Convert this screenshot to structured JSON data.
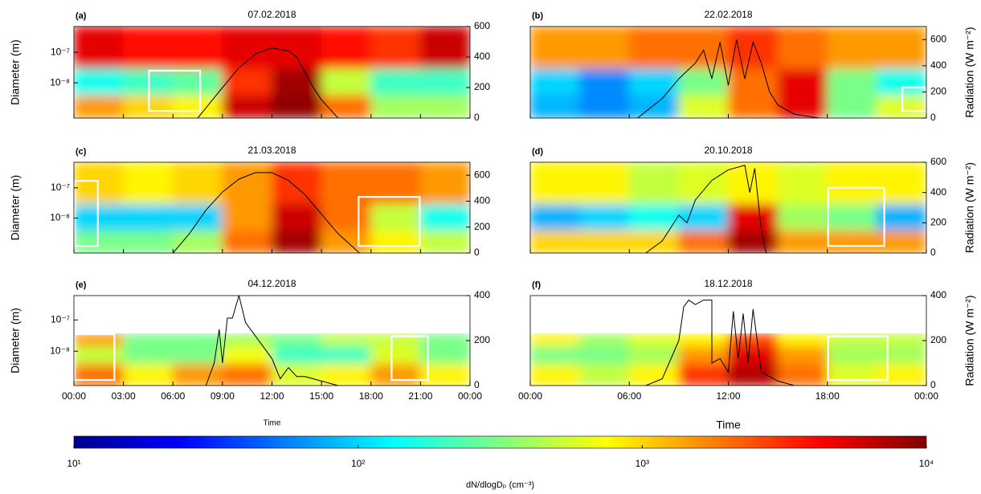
{
  "chart_data": [
    {
      "type": "heatmap",
      "label": "(a)",
      "title": "07.02.2018",
      "ylabel": "Diameter (m)",
      "xlim": [
        0,
        24
      ],
      "ylim": [
        7e-10,
        7e-07
      ],
      "yticks": [
        {
          "value": 1e-08,
          "label": "10⁻⁸"
        },
        {
          "value": 1e-07,
          "label": "10⁻⁷"
        }
      ],
      "y2lim": [
        0,
        600
      ],
      "y2ticks": [
        0,
        200,
        400,
        600
      ],
      "heat_edges": [
        7e-10,
        4e-09,
        3e-08,
        7e-07
      ],
      "heat": [
        [
          1500,
          1000,
          800,
          6000,
          9000,
          2000,
          400,
          400
        ],
        [
          150,
          200,
          250,
          3000,
          8000,
          500,
          200,
          200
        ],
        [
          5000,
          4000,
          4000,
          5000,
          5000,
          4000,
          3000,
          6000
        ]
      ],
      "radiation": {
        "x": [
          7.5,
          9,
          10,
          11,
          12,
          13,
          13.5,
          14,
          14.5,
          15,
          16
        ],
        "values": [
          0,
          200,
          330,
          420,
          460,
          440,
          400,
          300,
          200,
          120,
          0
        ]
      },
      "boxes": [
        {
          "x": [
            4.5,
            7.7
          ],
          "y": [
            1.2e-09,
            2.5e-08
          ]
        }
      ]
    },
    {
      "type": "heatmap",
      "label": "(b)",
      "title": "22.02.2018",
      "y2label": "Radiation (W m⁻²)",
      "xlim": [
        0,
        24
      ],
      "ylim": [
        7e-10,
        7e-07
      ],
      "y2lim": [
        0,
        700
      ],
      "y2ticks": [
        0,
        200,
        400,
        600
      ],
      "heat_edges": [
        7e-10,
        4e-09,
        3e-08,
        7e-07
      ],
      "heat": [
        [
          80,
          60,
          80,
          600,
          2000,
          5000,
          300,
          600
        ],
        [
          100,
          60,
          100,
          300,
          2000,
          5000,
          300,
          150
        ],
        [
          1500,
          1500,
          2000,
          2000,
          3000,
          2000,
          1500,
          1500
        ]
      ],
      "radiation": {
        "x": [
          6.5,
          7.5,
          8,
          9,
          10,
          10.5,
          11,
          11.5,
          12,
          12.5,
          13,
          13.5,
          14,
          14.5,
          15,
          16,
          17.5
        ],
        "values": [
          0,
          100,
          150,
          300,
          420,
          520,
          300,
          580,
          250,
          600,
          300,
          580,
          420,
          200,
          100,
          30,
          0
        ]
      },
      "boxes": [
        {
          "x": [
            22.5,
            24
          ],
          "y": [
            1.2e-09,
            7e-09
          ]
        }
      ]
    },
    {
      "type": "heatmap",
      "label": "(c)",
      "title": "21.03.2018",
      "ylabel": "Diameter (m)",
      "xlim": [
        0,
        24
      ],
      "ylim": [
        7e-10,
        7e-07
      ],
      "yticks": [
        {
          "value": 1e-08,
          "label": "10⁻⁸"
        },
        {
          "value": 1e-07,
          "label": "10⁻⁷"
        }
      ],
      "y2lim": [
        0,
        700
      ],
      "y2ticks": [
        0,
        200,
        400,
        600
      ],
      "heat_edges": [
        7e-10,
        4e-09,
        3e-08,
        7e-07
      ],
      "heat": [
        [
          300,
          300,
          400,
          2000,
          8000,
          1500,
          800,
          500
        ],
        [
          100,
          100,
          100,
          1500,
          6000,
          2000,
          500,
          150
        ],
        [
          1000,
          800,
          1000,
          1500,
          3000,
          2000,
          2000,
          1500
        ]
      ],
      "radiation": {
        "x": [
          6,
          7,
          8,
          9,
          10,
          11,
          12,
          13,
          14,
          15,
          16,
          17.3
        ],
        "values": [
          0,
          150,
          330,
          470,
          570,
          620,
          620,
          560,
          450,
          300,
          150,
          0
        ]
      },
      "boxes": [
        {
          "x": [
            0,
            1.5
          ],
          "y": [
            1.2e-09,
            1.7e-07
          ]
        },
        {
          "x": [
            17.2,
            21
          ],
          "y": [
            1.2e-09,
            5e-08
          ]
        }
      ]
    },
    {
      "type": "heatmap",
      "label": "(d)",
      "title": "20.10.2018",
      "y2label": "Radiation (W m⁻²)",
      "xlim": [
        0,
        24
      ],
      "ylim": [
        7e-10,
        7e-07
      ],
      "y2lim": [
        0,
        600
      ],
      "y2ticks": [
        0,
        200,
        400,
        600
      ],
      "heat_edges": [
        7e-10,
        4e-09,
        3e-08,
        7e-07
      ],
      "heat": [
        [
          1000,
          1000,
          1000,
          2000,
          8000,
          1500,
          1500,
          1500
        ],
        [
          80,
          100,
          150,
          100,
          5000,
          400,
          300,
          80
        ],
        [
          800,
          800,
          500,
          600,
          800,
          600,
          800,
          800
        ]
      ],
      "radiation": {
        "x": [
          7,
          8,
          9,
          9.5,
          10,
          11,
          12,
          13,
          13.3,
          13.6,
          14,
          14.3
        ],
        "values": [
          0,
          80,
          250,
          200,
          350,
          480,
          550,
          580,
          400,
          560,
          150,
          0
        ]
      },
      "boxes": [
        {
          "x": [
            18,
            21.5
          ],
          "y": [
            1.2e-09,
            1e-07
          ]
        }
      ]
    },
    {
      "type": "heatmap",
      "label": "(e)",
      "title": "04.12.2018",
      "ylabel": "Diameter (m)",
      "xlabel": "Time",
      "xlim": [
        0,
        24
      ],
      "xticks": [
        {
          "value": 0,
          "label": "00:00"
        },
        {
          "value": 3,
          "label": "03:00"
        },
        {
          "value": 6,
          "label": "06:00"
        },
        {
          "value": 9,
          "label": "09:00"
        },
        {
          "value": 12,
          "label": "12:00"
        },
        {
          "value": 15,
          "label": "15:00"
        },
        {
          "value": 18,
          "label": "18:00"
        },
        {
          "value": 21,
          "label": "21:00"
        },
        {
          "value": 24,
          "label": "00:00"
        }
      ],
      "ylim": [
        8e-10,
        6e-07
      ],
      "yticks": [
        {
          "value": 1e-08,
          "label": "10⁻⁸"
        },
        {
          "value": 1e-07,
          "label": "10⁻⁷"
        }
      ],
      "y2lim": [
        0,
        400
      ],
      "y2ticks": [
        0,
        200,
        400
      ],
      "heat_edges": [
        8e-10,
        4e-09,
        1.5e-08,
        3.6e-08
      ],
      "heat": [
        [
          2000,
          800,
          1500,
          2000,
          600,
          800,
          1500,
          800
        ],
        [
          500,
          300,
          300,
          700,
          200,
          200,
          600,
          300
        ],
        [
          1500,
          300,
          300,
          400,
          300,
          500,
          500,
          300
        ]
      ],
      "radiation": {
        "x": [
          8,
          8.5,
          8.8,
          9,
          9.3,
          9.6,
          10,
          10.4,
          11,
          12,
          12.5,
          13,
          13.5,
          14,
          15,
          16
        ],
        "values": [
          0,
          100,
          250,
          100,
          300,
          300,
          400,
          280,
          220,
          120,
          30,
          80,
          40,
          40,
          20,
          0
        ]
      },
      "boxes": [
        {
          "x": [
            0,
            2.5
          ],
          "y": [
            1.2e-09,
            3.5e-08
          ]
        },
        {
          "x": [
            19.2,
            21.5
          ],
          "y": [
            1.2e-09,
            3e-08
          ]
        }
      ]
    },
    {
      "type": "heatmap",
      "label": "(f)",
      "title": "18.12.2018",
      "y2label": "Radiation (W m⁻²)",
      "xlabel": "Time",
      "xlim": [
        0,
        24
      ],
      "xticks": [
        {
          "value": 0,
          "label": "00:00"
        },
        {
          "value": 6,
          "label": "06:00"
        },
        {
          "value": 12,
          "label": "12:00"
        },
        {
          "value": 18,
          "label": "18:00"
        },
        {
          "value": 24,
          "label": "00:00"
        }
      ],
      "ylim": [
        8e-10,
        6e-07
      ],
      "y2lim": [
        0,
        400
      ],
      "y2ticks": [
        0,
        200,
        400
      ],
      "heat_edges": [
        8e-10,
        4e-09,
        1.5e-08,
        3.6e-08
      ],
      "heat": [
        [
          800,
          500,
          800,
          3000,
          7000,
          2000,
          600,
          800
        ],
        [
          300,
          300,
          400,
          1500,
          5000,
          1500,
          400,
          400
        ],
        [
          800,
          400,
          600,
          800,
          2500,
          800,
          500,
          500
        ]
      ],
      "radiation": {
        "x": [
          7,
          8,
          9,
          9.3,
          9.6,
          10,
          10.5,
          11,
          11,
          11.5,
          12,
          12.3,
          12.6,
          12.9,
          13.2,
          13.5,
          14,
          15,
          16
        ],
        "values": [
          0,
          30,
          200,
          350,
          380,
          360,
          380,
          380,
          100,
          120,
          60,
          330,
          120,
          320,
          100,
          340,
          60,
          20,
          0
        ]
      },
      "boxes": [
        {
          "x": [
            18,
            21.7
          ],
          "y": [
            1.2e-09,
            3e-08
          ]
        }
      ]
    }
  ],
  "colorbar": {
    "label": "dN/dlogDₚ (cm⁻³)",
    "lim": [
      10,
      10000
    ],
    "ticks": [
      {
        "value": 10,
        "label": "10¹"
      },
      {
        "value": 100,
        "label": "10²"
      },
      {
        "value": 1000,
        "label": "10³"
      },
      {
        "value": 10000,
        "label": "10⁴"
      }
    ],
    "colors": [
      "#00008f",
      "#0000ff",
      "#0080ff",
      "#00ffff",
      "#80ff80",
      "#ffff00",
      "#ff8000",
      "#ff0000",
      "#800000"
    ]
  }
}
